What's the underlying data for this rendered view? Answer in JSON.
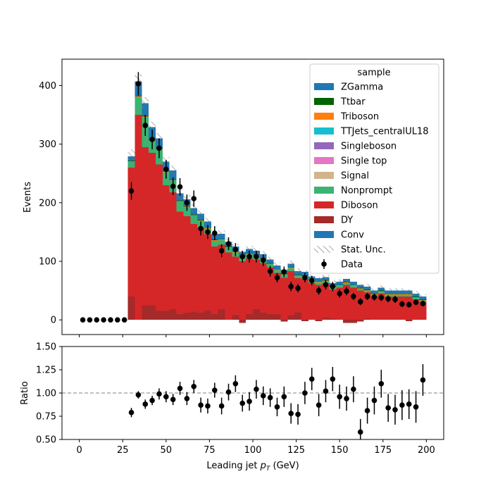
{
  "chart_data": {
    "type": "bar",
    "x_bin_width": 4,
    "x_first_bin_low": 0,
    "main": {
      "ylabel": "Events",
      "xlim": [
        -10,
        210
      ],
      "ylim": [
        -25,
        445
      ],
      "yticks": [
        0,
        100,
        200,
        300,
        400
      ],
      "stack_order_bottom_to_top": [
        "DY",
        "Diboson",
        "Nonprompt",
        "Signal",
        "Single top",
        "Singleboson",
        "TTJets_centralUL18",
        "Triboson",
        "Ttbar",
        "ZGamma",
        "Conv"
      ],
      "series": [
        {
          "name": "DY",
          "color": "#a52a2a",
          "values": [
            0,
            0,
            0,
            0,
            0,
            0,
            0,
            40,
            0,
            25,
            25,
            15,
            15,
            18,
            10,
            12,
            14,
            12,
            16,
            10,
            18,
            0,
            8,
            -5,
            10,
            18,
            12,
            10,
            10,
            -3,
            8,
            13,
            -2,
            0,
            -2,
            4,
            2,
            0,
            -5,
            -5,
            -3,
            2,
            0,
            0,
            0,
            0,
            0,
            -2,
            0,
            0
          ]
        },
        {
          "name": "Diboson",
          "color": "#d62728",
          "values": [
            0,
            0,
            0,
            0,
            0,
            0,
            0,
            220,
            350,
            270,
            260,
            250,
            215,
            200,
            175,
            165,
            150,
            145,
            130,
            115,
            110,
            115,
            100,
            100,
            95,
            85,
            85,
            80,
            70,
            72,
            75,
            58,
            70,
            63,
            60,
            58,
            50,
            55,
            60,
            55,
            50,
            45,
            40,
            45,
            40,
            40,
            40,
            40,
            35,
            30
          ]
        },
        {
          "name": "Nonprompt",
          "color": "#3cb371",
          "values": [
            0,
            0,
            0,
            0,
            0,
            0,
            0,
            10,
            30,
            50,
            20,
            25,
            22,
            20,
            17,
            15,
            14,
            12,
            10,
            10,
            8,
            8,
            7,
            7,
            7,
            6,
            6,
            5,
            5,
            5,
            5,
            4,
            4,
            4,
            4,
            4,
            4,
            3,
            3,
            3,
            3,
            3,
            3,
            3,
            3,
            3,
            3,
            3,
            3,
            3
          ]
        },
        {
          "name": "Signal",
          "color": "#d2b48c",
          "values": [
            0,
            0,
            0,
            0,
            0,
            0,
            0,
            0,
            0,
            0,
            0,
            0,
            0,
            0,
            0,
            0,
            0,
            0,
            0,
            0,
            0,
            0,
            0,
            0,
            0,
            0,
            0,
            0,
            0,
            0,
            0,
            0,
            0,
            0,
            0,
            0,
            0,
            0,
            0,
            0,
            0,
            0,
            0,
            0,
            0,
            0,
            0,
            0,
            0,
            0
          ]
        },
        {
          "name": "Single top",
          "color": "#e377c2",
          "values": [
            0,
            0,
            0,
            0,
            0,
            0,
            0,
            0,
            0,
            0,
            0,
            0,
            0,
            0,
            0,
            0,
            0,
            0,
            0,
            0,
            0,
            0,
            0,
            0,
            0,
            0,
            0,
            0,
            0,
            0,
            0,
            0,
            0,
            0,
            0,
            0,
            0,
            0,
            0,
            0,
            0,
            0,
            0,
            0,
            0,
            0,
            0,
            0,
            0,
            0
          ]
        },
        {
          "name": "Singleboson",
          "color": "#9467bd",
          "values": [
            0,
            0,
            0,
            0,
            0,
            0,
            0,
            0,
            0,
            0,
            0,
            0,
            0,
            0,
            0,
            0,
            0,
            0,
            0,
            0,
            0,
            0,
            0,
            0,
            0,
            0,
            0,
            0,
            0,
            0,
            0,
            0,
            0,
            0,
            0,
            0,
            0,
            0,
            0,
            0,
            0,
            0,
            0,
            0,
            0,
            0,
            0,
            0,
            0,
            0
          ]
        },
        {
          "name": "TTJets_centralUL18",
          "color": "#17becf",
          "values": [
            0,
            0,
            0,
            0,
            0,
            0,
            0,
            0,
            0,
            0,
            0,
            0,
            0,
            0,
            0,
            0,
            0,
            0,
            0,
            0,
            0,
            0,
            0,
            0,
            0,
            0,
            0,
            0,
            0,
            0,
            0,
            0,
            0,
            0,
            0,
            0,
            0,
            0,
            0,
            0,
            0,
            0,
            0,
            0,
            0,
            0,
            0,
            0,
            0,
            0
          ]
        },
        {
          "name": "Triboson",
          "color": "#ff7f0e",
          "values": [
            0,
            0,
            0,
            0,
            0,
            0,
            0,
            1,
            1,
            2,
            1,
            2,
            1,
            1,
            1,
            1,
            1,
            1,
            1,
            1,
            1,
            1,
            1,
            1,
            1,
            1,
            1,
            1,
            1,
            1,
            1,
            1,
            1,
            1,
            1,
            1,
            1,
            1,
            1,
            1,
            1,
            1,
            1,
            1,
            1,
            1,
            1,
            1,
            1,
            1
          ]
        },
        {
          "name": "Ttbar",
          "color": "#006400",
          "values": [
            0,
            0,
            0,
            0,
            0,
            0,
            0,
            1,
            1,
            1,
            1,
            1,
            1,
            1,
            1,
            1,
            1,
            1,
            1,
            1,
            1,
            1,
            1,
            1,
            1,
            1,
            1,
            1,
            1,
            1,
            1,
            1,
            1,
            1,
            1,
            1,
            1,
            1,
            1,
            1,
            1,
            1,
            1,
            1,
            1,
            1,
            1,
            1,
            1,
            1
          ]
        },
        {
          "name": "ZGamma",
          "color": "#1f77b4",
          "values": [
            0,
            0,
            0,
            0,
            0,
            0,
            0,
            7,
            10,
            10,
            10,
            7,
            8,
            7,
            6,
            6,
            6,
            5,
            5,
            5,
            5,
            4,
            4,
            4,
            4,
            4,
            4,
            3,
            3,
            3,
            3,
            3,
            3,
            3,
            3,
            3,
            3,
            3,
            3,
            3,
            3,
            3,
            3,
            3,
            3,
            3,
            3,
            3,
            3,
            3
          ]
        },
        {
          "name": "Conv",
          "color": "#1f77b4",
          "values": [
            0,
            0,
            0,
            0,
            0,
            0,
            0,
            0,
            15,
            12,
            12,
            10,
            8,
            8,
            6,
            6,
            5,
            5,
            5,
            4,
            4,
            4,
            4,
            3,
            3,
            3,
            3,
            3,
            3,
            3,
            3,
            3,
            3,
            2,
            2,
            2,
            2,
            2,
            2,
            2,
            2,
            2,
            2,
            2,
            2,
            2,
            2,
            2,
            2,
            2
          ]
        }
      ],
      "stat_unc": [
        0,
        0,
        0,
        0,
        0,
        0,
        0,
        12,
        12,
        10,
        9,
        9,
        8,
        8,
        7,
        7,
        7,
        6,
        6,
        6,
        6,
        6,
        5,
        5,
        5,
        5,
        5,
        5,
        5,
        5,
        5,
        5,
        4,
        4,
        4,
        4,
        4,
        4,
        4,
        4,
        4,
        4,
        4,
        4,
        4,
        4,
        4,
        4,
        4,
        4
      ],
      "data": {
        "name": "Data",
        "x": [
          2,
          6,
          10,
          14,
          18,
          22,
          26,
          30,
          34,
          38,
          42,
          46,
          50,
          54,
          58,
          62,
          66,
          70,
          74,
          78,
          82,
          86,
          90,
          94,
          98,
          102,
          106,
          110,
          114,
          118,
          122,
          126,
          130,
          134,
          138,
          142,
          146,
          150,
          154,
          158,
          162,
          166,
          170,
          174,
          178,
          182,
          186,
          190,
          194,
          198
        ],
        "y": [
          0,
          0,
          0,
          0,
          0,
          0,
          0,
          220,
          403,
          332,
          308,
          293,
          257,
          228,
          227,
          200,
          207,
          156,
          150,
          148,
          118,
          130,
          120,
          108,
          108,
          108,
          102,
          83,
          72,
          82,
          57,
          54,
          72,
          67,
          50,
          60,
          57,
          45,
          49,
          40,
          31,
          40,
          39,
          38,
          36,
          35,
          27,
          26,
          30,
          28
        ],
        "err": [
          0,
          0,
          0,
          0,
          0,
          0,
          0,
          15,
          20,
          18,
          17,
          17,
          16,
          15,
          15,
          14,
          14,
          12,
          12,
          12,
          11,
          11,
          11,
          10,
          10,
          10,
          10,
          9,
          8,
          9,
          8,
          7,
          8,
          8,
          7,
          8,
          8,
          7,
          7,
          6,
          6,
          6,
          6,
          6,
          6,
          6,
          5,
          5,
          5,
          5
        ]
      },
      "legend": {
        "title": "sample",
        "location": "upper right"
      },
      "legend_entries": [
        {
          "label": "ZGamma",
          "kind": "patch",
          "color": "#1f77b4"
        },
        {
          "label": "Ttbar",
          "kind": "patch",
          "color": "#006400"
        },
        {
          "label": "Triboson",
          "kind": "patch",
          "color": "#ff7f0e"
        },
        {
          "label": "TTJets_centralUL18",
          "kind": "patch",
          "color": "#17becf"
        },
        {
          "label": "Singleboson",
          "kind": "patch",
          "color": "#9467bd"
        },
        {
          "label": "Single top",
          "kind": "patch",
          "color": "#e377c2"
        },
        {
          "label": "Signal",
          "kind": "patch",
          "color": "#d2b48c"
        },
        {
          "label": "Nonprompt",
          "kind": "patch",
          "color": "#3cb371"
        },
        {
          "label": "Diboson",
          "kind": "patch",
          "color": "#d62728"
        },
        {
          "label": "DY",
          "kind": "patch",
          "color": "#a52a2a"
        },
        {
          "label": "Conv",
          "kind": "patch",
          "color": "#1f77b4"
        },
        {
          "label": "Stat. Unc.",
          "kind": "hatch",
          "color": "#888888"
        },
        {
          "label": "Data",
          "kind": "errorbar",
          "color": "#000000"
        }
      ]
    },
    "ratio": {
      "ylabel": "Ratio",
      "xlabel_prefix": "Leading jet  ",
      "xlabel_var": "p",
      "xlabel_sub": "T",
      "xlabel_suffix": " (GeV)",
      "xlim": [
        -10,
        210
      ],
      "ylim": [
        0.5,
        1.5
      ],
      "yticks": [
        "0.50",
        "0.75",
        "1.00",
        "1.25",
        "1.50"
      ],
      "ytick_values": [
        0.5,
        0.75,
        1.0,
        1.25,
        1.5
      ],
      "reference_line": 1.0,
      "xticks": [
        0,
        25,
        50,
        75,
        100,
        125,
        150,
        175,
        200
      ],
      "x": [
        30,
        34,
        38,
        42,
        46,
        50,
        54,
        58,
        62,
        66,
        70,
        74,
        78,
        82,
        86,
        90,
        94,
        98,
        102,
        106,
        110,
        114,
        118,
        122,
        126,
        130,
        134,
        138,
        142,
        146,
        150,
        154,
        158,
        162,
        166,
        170,
        174,
        178,
        182,
        186,
        190,
        194,
        198
      ],
      "y": [
        0.79,
        0.98,
        0.88,
        0.92,
        0.99,
        0.96,
        0.93,
        1.05,
        0.94,
        1.07,
        0.87,
        0.86,
        1.03,
        0.86,
        1.01,
        1.1,
        0.89,
        0.91,
        1.04,
        0.97,
        0.95,
        0.85,
        0.96,
        0.78,
        0.77,
        1.0,
        1.15,
        0.87,
        1.02,
        1.15,
        0.96,
        0.94,
        1.04,
        0.58,
        0.81,
        0.92,
        1.1,
        0.84,
        0.82,
        0.87,
        0.88,
        0.85,
        1.14
      ],
      "err": [
        0.05,
        0.04,
        0.05,
        0.05,
        0.06,
        0.06,
        0.06,
        0.07,
        0.07,
        0.07,
        0.08,
        0.08,
        0.08,
        0.09,
        0.09,
        0.09,
        0.09,
        0.1,
        0.1,
        0.1,
        0.1,
        0.1,
        0.11,
        0.11,
        0.11,
        0.12,
        0.12,
        0.12,
        0.12,
        0.13,
        0.13,
        0.13,
        0.14,
        0.14,
        0.14,
        0.15,
        0.15,
        0.15,
        0.16,
        0.16,
        0.16,
        0.17,
        0.17
      ]
    }
  }
}
